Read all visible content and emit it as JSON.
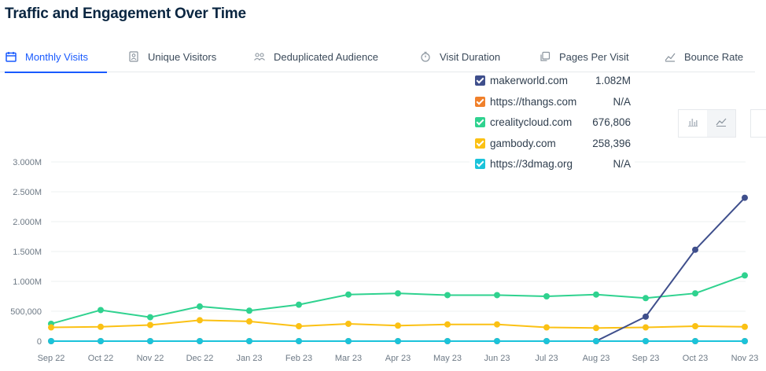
{
  "page": {
    "title": "Traffic and Engagement Over Time"
  },
  "tabs": [
    {
      "label": "Monthly Visits",
      "icon": "calendar-icon",
      "active": true
    },
    {
      "label": "Unique Visitors",
      "icon": "id-card-icon",
      "active": false
    },
    {
      "label": "Deduplicated Audience",
      "icon": "users-icon",
      "active": false
    },
    {
      "label": "Visit Duration",
      "icon": "stopwatch-icon",
      "active": false
    },
    {
      "label": "Pages Per Visit",
      "icon": "pages-icon",
      "active": false
    },
    {
      "label": "Bounce Rate",
      "icon": "bounce-icon",
      "active": false
    }
  ],
  "legend": [
    {
      "name": "makerworld.com",
      "value": "1.082M",
      "color": "#3f4f8c"
    },
    {
      "name": "https://thangs.com",
      "value": "N/A",
      "color": "#f0802b"
    },
    {
      "name": "crealitycloud.com",
      "value": "676,806",
      "color": "#2fd28f"
    },
    {
      "name": "gambody.com",
      "value": "258,396",
      "color": "#fbc114"
    },
    {
      "name": "https://3dmag.org",
      "value": "N/A",
      "color": "#1bc3da"
    }
  ],
  "chart_switch": {
    "options": [
      "bar-chart-icon",
      "line-chart-icon"
    ],
    "active": "line-chart-icon"
  },
  "chart_data": {
    "type": "line",
    "categories": [
      "Sep 22",
      "Oct 22",
      "Nov 22",
      "Dec 22",
      "Jan 23",
      "Feb 23",
      "Mar 23",
      "Apr 23",
      "May 23",
      "Jun 23",
      "Jul 23",
      "Aug 23",
      "Sep 23",
      "Oct 23",
      "Nov 23"
    ],
    "y_tick_labels": [
      "0",
      "500,000",
      "1.000M",
      "1.500M",
      "2.000M",
      "2.500M",
      "3.000M"
    ],
    "ylim": [
      0,
      3000000
    ],
    "grid": true,
    "series": [
      {
        "name": "crealitycloud.com",
        "color": "#2fd28f",
        "values": [
          290000,
          520000,
          400000,
          580000,
          510000,
          610000,
          780000,
          800000,
          770000,
          770000,
          750000,
          780000,
          720000,
          800000,
          1100000
        ]
      },
      {
        "name": "gambody.com",
        "color": "#fbc114",
        "values": [
          230000,
          240000,
          270000,
          350000,
          330000,
          250000,
          290000,
          260000,
          280000,
          280000,
          230000,
          220000,
          230000,
          250000,
          240000
        ]
      },
      {
        "name": "makerworld.com",
        "color": "#3f4f8c",
        "values": [
          null,
          null,
          null,
          null,
          null,
          null,
          null,
          null,
          null,
          null,
          null,
          0,
          410000,
          1530000,
          2400000
        ]
      },
      {
        "name": "https://thangs.com",
        "color": "#f0802b",
        "values": [
          0,
          0,
          0,
          0,
          0,
          0,
          0,
          0,
          0,
          0,
          0,
          0,
          0,
          0,
          0
        ]
      },
      {
        "name": "https://3dmag.org",
        "color": "#1bc3da",
        "values": [
          0,
          0,
          0,
          0,
          0,
          0,
          0,
          0,
          0,
          0,
          0,
          0,
          0,
          0,
          0
        ]
      }
    ]
  }
}
